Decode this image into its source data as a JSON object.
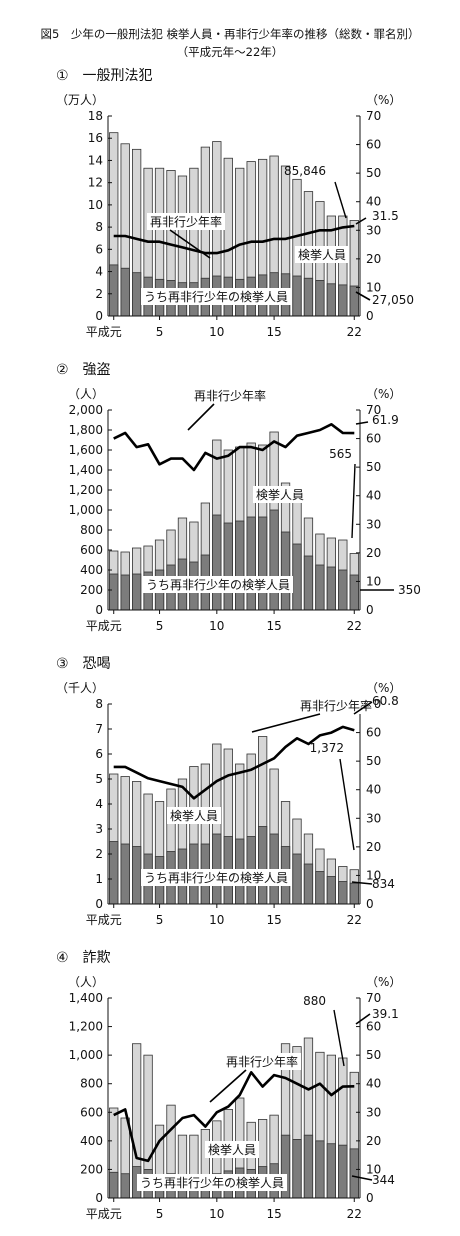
{
  "figure": {
    "title": "図5　少年の一般刑法犯 検挙人員・再非行少年率の推移（総数・罪名別）",
    "subtitle": "（平成元年～22年）"
  },
  "colors": {
    "total_bar": "#d6d6d6",
    "repeat_bar": "#7c7c7c",
    "bar_edge": "#333333",
    "rate_line": "#000000"
  },
  "chart_data": [
    {
      "type": "bar",
      "title": "①　一般刑法犯",
      "left_unit": "（万人）",
      "right_unit": "（%）",
      "left_ylim": [
        0,
        18
      ],
      "left_ticks": [
        "0",
        "2",
        "4",
        "6",
        "8",
        "10",
        "12",
        "14",
        "16",
        "18"
      ],
      "right_ylim": [
        0,
        70
      ],
      "right_ticks": [
        "0",
        "10",
        "20",
        "30",
        "40",
        "50",
        "60",
        "70"
      ],
      "x_ticks": [
        [
          "平成元",
          1
        ],
        [
          "5",
          5
        ],
        [
          "10",
          10
        ],
        [
          "15",
          15
        ],
        [
          "22",
          22
        ]
      ],
      "x": [
        1,
        2,
        3,
        4,
        5,
        6,
        7,
        8,
        9,
        10,
        11,
        12,
        13,
        14,
        15,
        16,
        17,
        18,
        19,
        20,
        21,
        22
      ],
      "series": [
        {
          "name": "検挙人員",
          "values": [
            16.5,
            15.5,
            15.0,
            13.3,
            13.3,
            13.1,
            12.6,
            13.3,
            15.2,
            15.7,
            14.2,
            13.3,
            13.9,
            14.1,
            14.4,
            13.5,
            12.3,
            11.2,
            10.3,
            9.0,
            9.0,
            8.6
          ]
        },
        {
          "name": "うち再非行少年の検挙人員",
          "values": [
            4.6,
            4.3,
            3.9,
            3.5,
            3.3,
            3.2,
            3.0,
            3.0,
            3.4,
            3.6,
            3.5,
            3.3,
            3.5,
            3.7,
            3.9,
            3.8,
            3.6,
            3.4,
            3.2,
            2.9,
            2.8,
            2.7
          ]
        },
        {
          "name": "再非行少年率",
          "values": [
            28,
            28,
            27,
            26,
            26,
            25,
            24,
            23,
            22,
            22,
            23,
            25,
            26,
            26,
            27,
            27,
            28,
            29,
            30,
            30,
            31,
            31.5
          ]
        }
      ],
      "labels": {
        "total_bar": "検挙人員",
        "repeat_bar": "うち再非行少年の検挙人員",
        "rate_line": "再非行少年率"
      },
      "annotations": {
        "total_last": "85,846",
        "rate_last": "31.5",
        "repeat_last": "27,050"
      }
    },
    {
      "type": "bar",
      "title": "②　強盗",
      "left_unit": "（人）",
      "right_unit": "（%）",
      "left_ylim": [
        0,
        2000
      ],
      "left_ticks": [
        "0",
        "200",
        "400",
        "600",
        "800",
        "1,000",
        "1,200",
        "1,400",
        "1,600",
        "1,800",
        "2,000"
      ],
      "right_ylim": [
        0,
        70
      ],
      "right_ticks": [
        "0",
        "10",
        "20",
        "30",
        "40",
        "50",
        "60",
        "70"
      ],
      "x_ticks": [
        [
          "平成元",
          1
        ],
        [
          "5",
          5
        ],
        [
          "10",
          10
        ],
        [
          "15",
          15
        ],
        [
          "22",
          22
        ]
      ],
      "x": [
        1,
        2,
        3,
        4,
        5,
        6,
        7,
        8,
        9,
        10,
        11,
        12,
        13,
        14,
        15,
        16,
        17,
        18,
        19,
        20,
        21,
        22
      ],
      "series": [
        {
          "name": "検挙人員",
          "values": [
            590,
            580,
            620,
            640,
            700,
            800,
            920,
            880,
            1070,
            1700,
            1600,
            1630,
            1670,
            1650,
            1780,
            1270,
            1140,
            920,
            760,
            720,
            700,
            565
          ]
        },
        {
          "name": "うち再非行少年の検挙人員",
          "values": [
            360,
            350,
            360,
            380,
            400,
            450,
            510,
            480,
            550,
            950,
            870,
            890,
            930,
            930,
            1000,
            780,
            660,
            540,
            450,
            430,
            400,
            350
          ]
        },
        {
          "name": "再非行少年率",
          "values": [
            60,
            62,
            57,
            58,
            51,
            53,
            53,
            49,
            55,
            53,
            54,
            57,
            57,
            56,
            59,
            57,
            61,
            62,
            63,
            65,
            62,
            61.9
          ]
        }
      ],
      "labels": {
        "total_bar": "検挙人員",
        "repeat_bar": "うち再非行少年の検挙人員",
        "rate_line": "再非行少年率"
      },
      "annotations": {
        "total_last": "565",
        "rate_last": "61.9",
        "repeat_last": "350"
      }
    },
    {
      "type": "bar",
      "title": "③　恐喝",
      "left_unit": "（千人）",
      "right_unit": "（%）",
      "left_ylim": [
        0,
        8
      ],
      "left_ticks": [
        "0",
        "1",
        "2",
        "3",
        "4",
        "5",
        "6",
        "7",
        "8"
      ],
      "right_ylim": [
        0,
        70
      ],
      "right_ticks": [
        "0",
        "10",
        "20",
        "30",
        "40",
        "50",
        "60",
        "70"
      ],
      "x_ticks": [
        [
          "平成元",
          1
        ],
        [
          "5",
          5
        ],
        [
          "10",
          10
        ],
        [
          "15",
          15
        ],
        [
          "22",
          22
        ]
      ],
      "x": [
        1,
        2,
        3,
        4,
        5,
        6,
        7,
        8,
        9,
        10,
        11,
        12,
        13,
        14,
        15,
        16,
        17,
        18,
        19,
        20,
        21,
        22
      ],
      "series": [
        {
          "name": "検挙人員",
          "values": [
            5.2,
            5.1,
            4.9,
            4.4,
            4.1,
            4.6,
            5.0,
            5.5,
            5.6,
            6.4,
            6.2,
            5.6,
            6.0,
            6.7,
            5.4,
            4.1,
            3.4,
            2.8,
            2.2,
            1.8,
            1.5,
            1.372
          ]
        },
        {
          "name": "うち再非行少年の検挙人員",
          "values": [
            2.5,
            2.4,
            2.3,
            2.0,
            1.9,
            2.1,
            2.2,
            2.4,
            2.4,
            2.8,
            2.7,
            2.6,
            2.7,
            3.1,
            2.8,
            2.3,
            2.0,
            1.6,
            1.3,
            1.1,
            0.9,
            0.834
          ]
        },
        {
          "name": "再非行少年率",
          "values": [
            48,
            48,
            46,
            44,
            43,
            42,
            41,
            37,
            40,
            43,
            45,
            46,
            47,
            49,
            51,
            55,
            58,
            56,
            59,
            60,
            62,
            60.8
          ]
        }
      ],
      "labels": {
        "total_bar": "検挙人員",
        "repeat_bar": "うち再非行少年の検挙人員",
        "rate_line": "再非行少年率"
      },
      "annotations": {
        "total_last": "1,372",
        "rate_last": "60.8",
        "repeat_last": "834"
      }
    },
    {
      "type": "bar",
      "title": "④　詐欺",
      "left_unit": "（人）",
      "right_unit": "（%）",
      "left_ylim": [
        0,
        1400
      ],
      "left_ticks": [
        "0",
        "200",
        "400",
        "600",
        "800",
        "1,000",
        "1,200",
        "1,400"
      ],
      "right_ylim": [
        0,
        70
      ],
      "right_ticks": [
        "0",
        "10",
        "20",
        "30",
        "40",
        "50",
        "60",
        "70"
      ],
      "x_ticks": [
        [
          "平成元",
          1
        ],
        [
          "5",
          5
        ],
        [
          "10",
          10
        ],
        [
          "15",
          15
        ],
        [
          "22",
          22
        ]
      ],
      "x": [
        1,
        2,
        3,
        4,
        5,
        6,
        7,
        8,
        9,
        10,
        11,
        12,
        13,
        14,
        15,
        16,
        17,
        18,
        19,
        20,
        21,
        22
      ],
      "series": [
        {
          "name": "検挙人員",
          "values": [
            630,
            560,
            1080,
            1000,
            510,
            650,
            440,
            440,
            480,
            540,
            620,
            700,
            530,
            550,
            580,
            1080,
            1060,
            1120,
            1020,
            1000,
            980,
            880
          ]
        },
        {
          "name": "うち再非行少年の検挙人員",
          "values": [
            180,
            170,
            220,
            200,
            130,
            170,
            150,
            140,
            160,
            170,
            190,
            210,
            200,
            220,
            240,
            440,
            410,
            440,
            400,
            380,
            370,
            344
          ]
        },
        {
          "name": "再非行少年率",
          "values": [
            29,
            31,
            14,
            13,
            20,
            24,
            28,
            29,
            25,
            30,
            32,
            36,
            44,
            39,
            43,
            42,
            40,
            38,
            40,
            36,
            39,
            39.1
          ]
        }
      ],
      "labels": {
        "total_bar": "検挙人員",
        "repeat_bar": "うち再非行少年の検挙人員",
        "rate_line": "再非行少年率"
      },
      "annotations": {
        "total_last": "880",
        "rate_last": "39.1",
        "repeat_last": "344"
      }
    }
  ]
}
